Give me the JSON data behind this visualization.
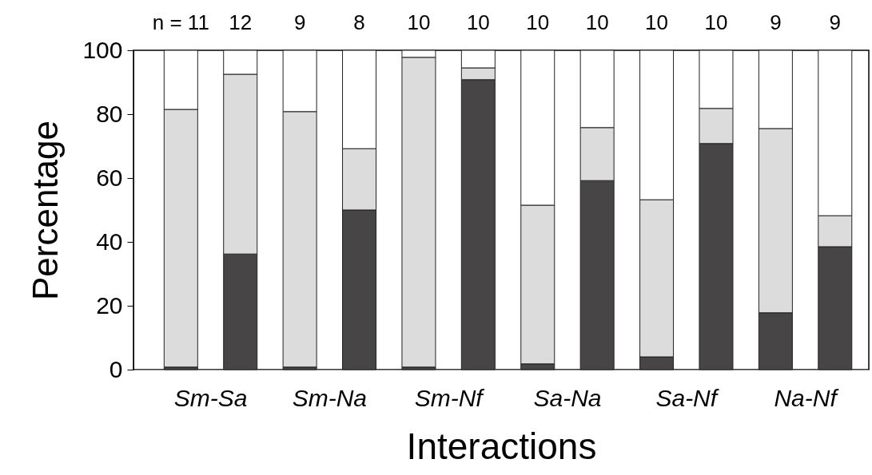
{
  "chart_data": {
    "type": "bar",
    "stacked": true,
    "xlabel": "Interactions",
    "ylabel": "Percentage",
    "categories": [
      "Sm-Sa",
      null,
      "Sm-Na",
      null,
      "Sm-Nf",
      null,
      "Sa-Na",
      null,
      "Sa-Nf",
      null,
      "Na-Nf",
      null
    ],
    "series": [
      {
        "color": "#474546",
        "values": [
          0.8,
          36.2,
          0.8,
          50,
          0.8,
          90.8,
          1.8,
          59.2,
          4,
          70.8,
          17.8,
          38.5
        ]
      },
      {
        "color": "#dcdcdc",
        "values": [
          80.7,
          56.3,
          80,
          19.2,
          97,
          3.7,
          49.7,
          16.6,
          49.2,
          11,
          57.7,
          9.7
        ]
      },
      {
        "color": "#ffffff",
        "values": [
          18.5,
          7.5,
          19.2,
          30.8,
          2.2,
          5.5,
          48.5,
          24.2,
          46.8,
          18.2,
          24.5,
          51.8
        ]
      }
    ],
    "ylim": [
      0,
      100
    ],
    "yticks": [
      0,
      20,
      40,
      60,
      80,
      100
    ],
    "grid": false,
    "annotations": [
      "n = 11",
      "12",
      "9",
      "8",
      "10",
      "10",
      "10",
      "10",
      "10",
      "10",
      "9",
      "9"
    ]
  }
}
